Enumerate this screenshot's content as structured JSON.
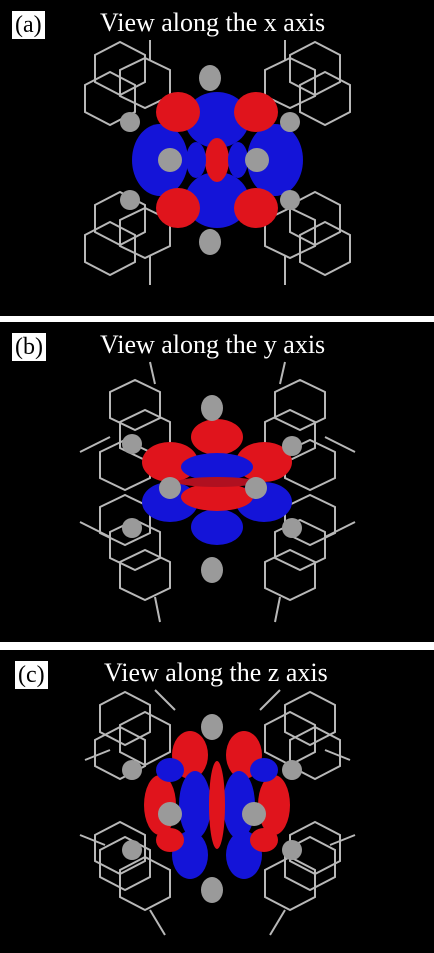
{
  "panels": [
    {
      "tag": "(a)",
      "title": "View along the x axis"
    },
    {
      "tag": "(b)",
      "title": "View along the y axis"
    },
    {
      "tag": "(c)",
      "title": "View along the z axis"
    }
  ],
  "colors": {
    "background": "#000000",
    "lobe_positive": "#e0141c",
    "lobe_negative": "#1414d8",
    "atom_sphere": "#9a9a9a",
    "bonds": "#b8b8b8"
  }
}
